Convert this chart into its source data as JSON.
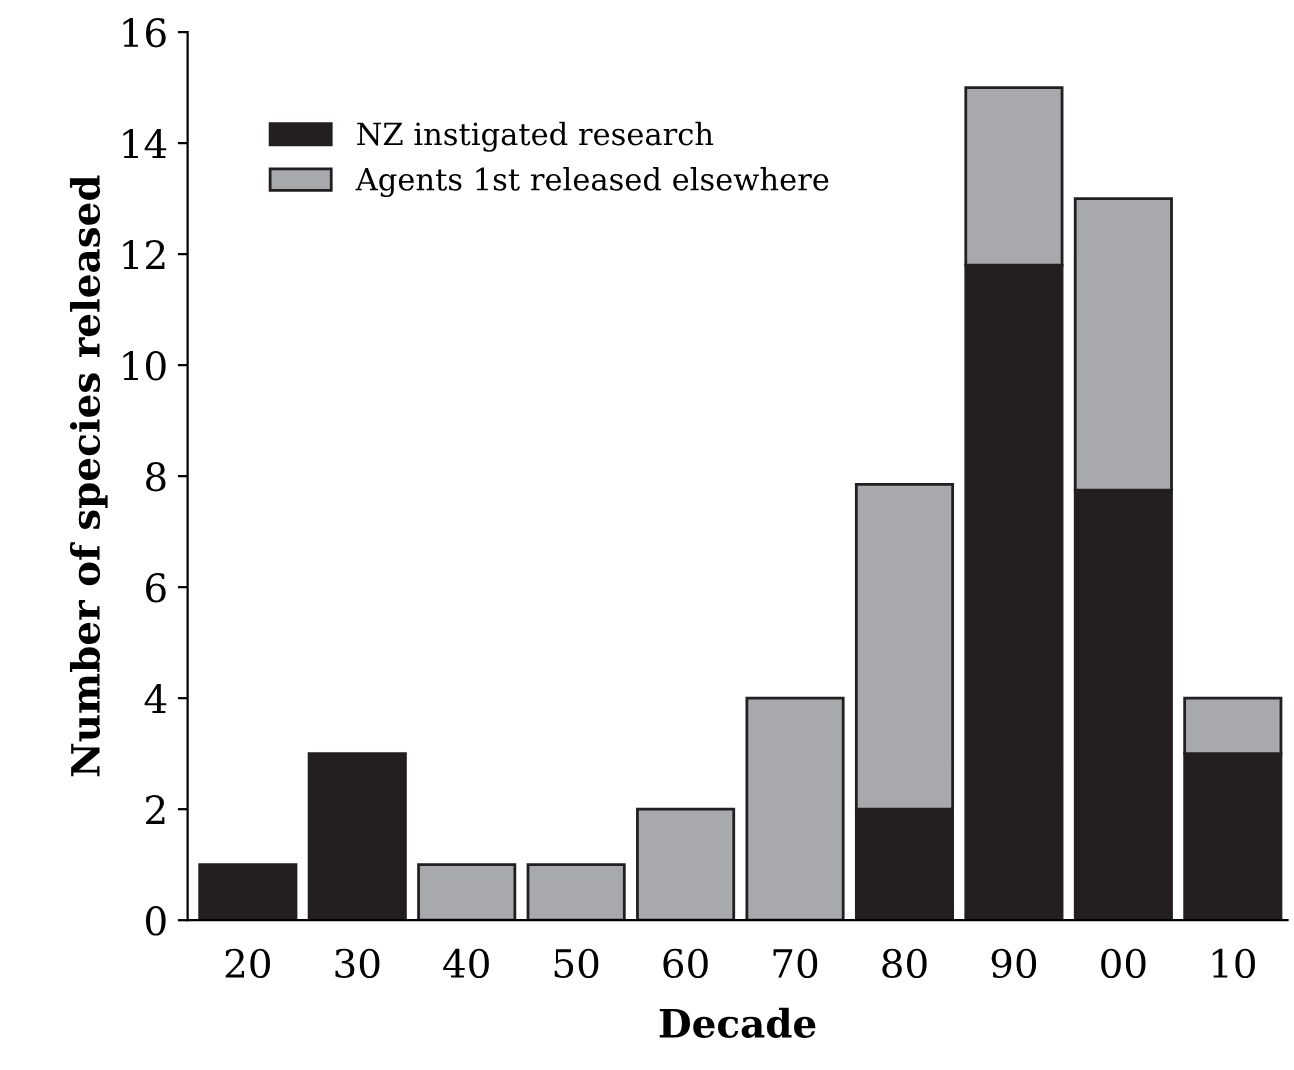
{
  "chart_data": {
    "type": "bar",
    "stacked": true,
    "xlabel": "Decade",
    "ylabel": "Number of species released",
    "categories": [
      "20",
      "30",
      "40",
      "50",
      "60",
      "70",
      "80",
      "90",
      "00",
      "10"
    ],
    "series": [
      {
        "name": "NZ instigated research",
        "color": "#231f20",
        "values": [
          1,
          3,
          null,
          null,
          null,
          null,
          2,
          11.8,
          7.75,
          3
        ]
      },
      {
        "name": "Agents 1st released elsewhere",
        "color": "#a7a9ac",
        "values": [
          null,
          null,
          1,
          1,
          2,
          4,
          5.85,
          3.2,
          5.25,
          1
        ]
      }
    ],
    "ylim": [
      0,
      16
    ],
    "yticks": [
      0,
      2,
      4,
      6,
      8,
      10,
      12,
      14,
      16
    ],
    "grid": false,
    "legend": "top left"
  }
}
